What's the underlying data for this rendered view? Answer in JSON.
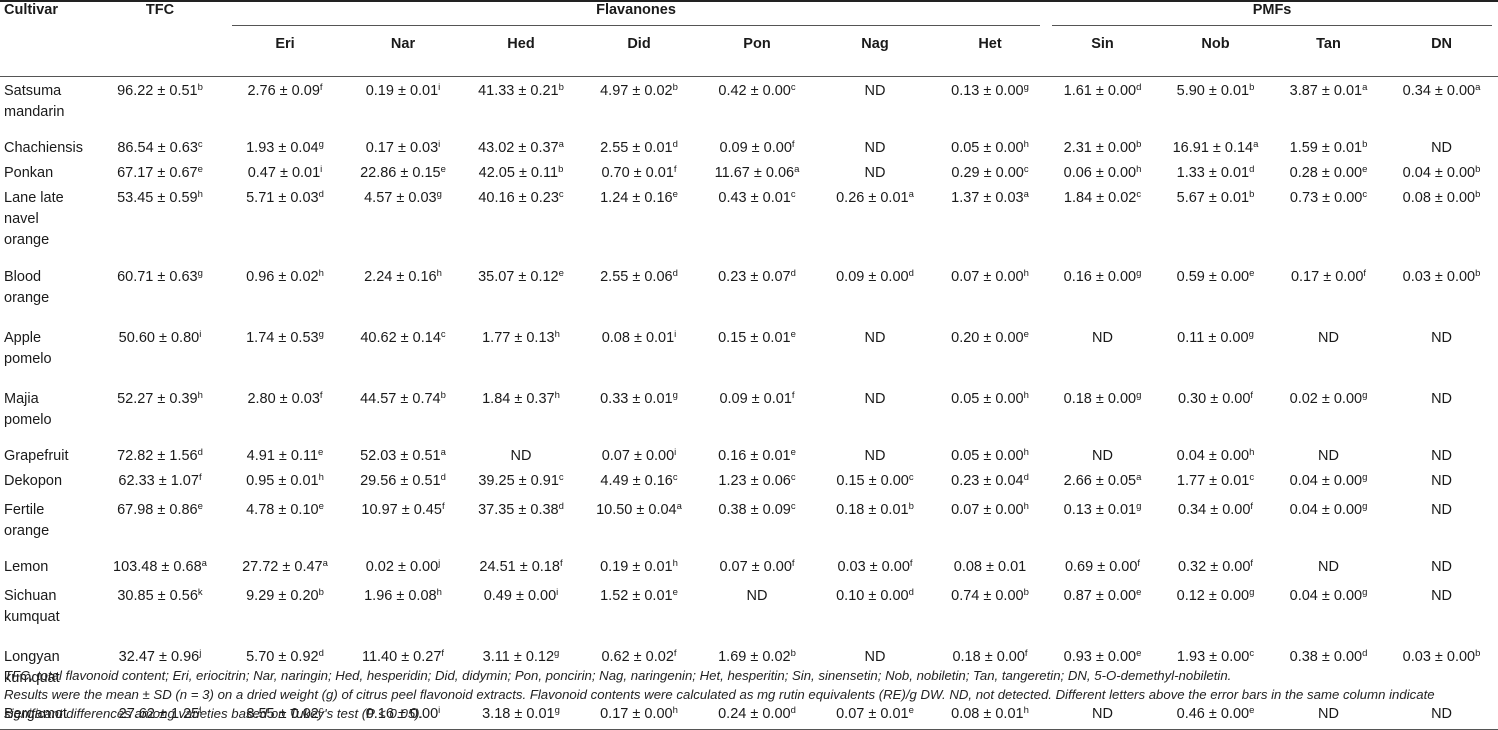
{
  "group_headers": {
    "cultivar": "Cultivar",
    "tfc": "TFC",
    "flavanones": "Flavanones",
    "pmfs": "PMFs"
  },
  "subheaders": [
    "Eri",
    "Nar",
    "Hed",
    "Did",
    "Pon",
    "Nag",
    "Het",
    "Sin",
    "Nob",
    "Tan",
    "DN"
  ],
  "rows": [
    {
      "name": [
        "Satsuma",
        "mandarin"
      ],
      "cells": [
        [
          "96.22 ± 0.51",
          "b"
        ],
        [
          "2.76 ± 0.09",
          "f"
        ],
        [
          "0.19 ± 0.01",
          "i"
        ],
        [
          "41.33 ± 0.21",
          "b"
        ],
        [
          "4.97 ± 0.02",
          "b"
        ],
        [
          "0.42 ± 0.00",
          "c"
        ],
        [
          "ND",
          ""
        ],
        [
          "0.13 ± 0.00",
          "g"
        ],
        [
          "1.61 ± 0.00",
          "d"
        ],
        [
          "5.90 ± 0.01",
          "b"
        ],
        [
          "3.87 ± 0.01",
          "a"
        ],
        [
          "0.34 ± 0.00",
          "a"
        ]
      ]
    },
    {
      "name": [
        "Chachiensis"
      ],
      "cells": [
        [
          "86.54 ± 0.63",
          "c"
        ],
        [
          "1.93 ± 0.04",
          "g"
        ],
        [
          "0.17 ± 0.03",
          "i"
        ],
        [
          "43.02 ± 0.37",
          "a"
        ],
        [
          "2.55 ± 0.01",
          "d"
        ],
        [
          "0.09 ± 0.00",
          "f"
        ],
        [
          "ND",
          ""
        ],
        [
          "0.05 ± 0.00",
          "h"
        ],
        [
          "2.31 ± 0.00",
          "b"
        ],
        [
          "16.91 ± 0.14",
          "a"
        ],
        [
          "1.59 ± 0.01",
          "b"
        ],
        [
          "ND",
          ""
        ]
      ]
    },
    {
      "name": [
        "Ponkan"
      ],
      "cells": [
        [
          "67.17 ± 0.67",
          "e"
        ],
        [
          "0.47 ± 0.01",
          "i"
        ],
        [
          "22.86 ± 0.15",
          "e"
        ],
        [
          "42.05 ± 0.11",
          "b"
        ],
        [
          "0.70 ± 0.01",
          "f"
        ],
        [
          "11.67 ± 0.06",
          "a"
        ],
        [
          "ND",
          ""
        ],
        [
          "0.29 ± 0.00",
          "c"
        ],
        [
          "0.06 ± 0.00",
          "h"
        ],
        [
          "1.33 ± 0.01",
          "d"
        ],
        [
          "0.28 ± 0.00",
          "e"
        ],
        [
          "0.04 ± 0.00",
          "b"
        ]
      ]
    },
    {
      "name": [
        "Lane late",
        "navel",
        "orange"
      ],
      "cells": [
        [
          "53.45 ± 0.59",
          "h"
        ],
        [
          "5.71 ± 0.03",
          "d"
        ],
        [
          "4.57 ± 0.03",
          "g"
        ],
        [
          "40.16 ± 0.23",
          "c"
        ],
        [
          "1.24 ± 0.16",
          "e"
        ],
        [
          "0.43 ± 0.01",
          "c"
        ],
        [
          "0.26 ± 0.01",
          "a"
        ],
        [
          "1.37 ± 0.03",
          "a"
        ],
        [
          "1.84 ± 0.02",
          "c"
        ],
        [
          "5.67 ± 0.01",
          "b"
        ],
        [
          "0.73 ± 0.00",
          "c"
        ],
        [
          "0.08 ± 0.00",
          "b"
        ]
      ]
    },
    {
      "name": [
        "Blood",
        "orange"
      ],
      "cells": [
        [
          "60.71 ± 0.63",
          "g"
        ],
        [
          "0.96 ± 0.02",
          "h"
        ],
        [
          "2.24 ± 0.16",
          "h"
        ],
        [
          "35.07 ± 0.12",
          "e"
        ],
        [
          "2.55 ± 0.06",
          "d"
        ],
        [
          "0.23 ± 0.07",
          "d"
        ],
        [
          "0.09 ± 0.00",
          "d"
        ],
        [
          "0.07 ± 0.00",
          "h"
        ],
        [
          "0.16 ± 0.00",
          "g"
        ],
        [
          "0.59 ± 0.00",
          "e"
        ],
        [
          "0.17 ± 0.00",
          "f"
        ],
        [
          "0.03 ± 0.00",
          "b"
        ]
      ]
    },
    {
      "name": [
        "Apple",
        "pomelo"
      ],
      "cells": [
        [
          "50.60 ± 0.80",
          "i"
        ],
        [
          "1.74 ± 0.53",
          "g"
        ],
        [
          "40.62 ± 0.14",
          "c"
        ],
        [
          "1.77 ± 0.13",
          "h"
        ],
        [
          "0.08 ± 0.01",
          "i"
        ],
        [
          "0.15 ± 0.01",
          "e"
        ],
        [
          "ND",
          ""
        ],
        [
          "0.20 ± 0.00",
          "e"
        ],
        [
          "ND",
          ""
        ],
        [
          "0.11 ± 0.00",
          "g"
        ],
        [
          "ND",
          ""
        ],
        [
          "ND",
          ""
        ]
      ]
    },
    {
      "name": [
        "Majia",
        "pomelo"
      ],
      "cells": [
        [
          "52.27 ± 0.39",
          "h"
        ],
        [
          "2.80 ± 0.03",
          "f"
        ],
        [
          "44.57 ± 0.74",
          "b"
        ],
        [
          "1.84 ± 0.37",
          "h"
        ],
        [
          "0.33 ± 0.01",
          "g"
        ],
        [
          "0.09 ± 0.01",
          "f"
        ],
        [
          "ND",
          ""
        ],
        [
          "0.05 ± 0.00",
          "h"
        ],
        [
          "0.18 ± 0.00",
          "g"
        ],
        [
          "0.30 ± 0.00",
          "f"
        ],
        [
          "0.02 ± 0.00",
          "g"
        ],
        [
          "ND",
          ""
        ]
      ]
    },
    {
      "name": [
        "Grapefruit"
      ],
      "cells": [
        [
          "72.82 ± 1.56",
          "d"
        ],
        [
          "4.91 ± 0.11",
          "e"
        ],
        [
          "52.03 ± 0.51",
          "a"
        ],
        [
          "ND",
          ""
        ],
        [
          "0.07 ± 0.00",
          "i"
        ],
        [
          "0.16 ± 0.01",
          "e"
        ],
        [
          "ND",
          ""
        ],
        [
          "0.05 ± 0.00",
          "h"
        ],
        [
          "ND",
          ""
        ],
        [
          "0.04 ± 0.00",
          "h"
        ],
        [
          "ND",
          ""
        ],
        [
          "ND",
          ""
        ]
      ]
    },
    {
      "name": [
        "Dekopon"
      ],
      "cells": [
        [
          "62.33 ± 1.07",
          "f"
        ],
        [
          "0.95 ± 0.01",
          "h"
        ],
        [
          "29.56 ± 0.51",
          "d"
        ],
        [
          "39.25 ± 0.91",
          "c"
        ],
        [
          "4.49 ± 0.16",
          "c"
        ],
        [
          "1.23 ± 0.06",
          "c"
        ],
        [
          "0.15 ± 0.00",
          "c"
        ],
        [
          "0.23 ± 0.04",
          "d"
        ],
        [
          "2.66 ± 0.05",
          "a"
        ],
        [
          "1.77 ± 0.01",
          "c"
        ],
        [
          "0.04 ± 0.00",
          "g"
        ],
        [
          "ND",
          ""
        ]
      ]
    },
    {
      "name": [
        "Fertile",
        "orange"
      ],
      "cells": [
        [
          "67.98 ± 0.86",
          "e"
        ],
        [
          "4.78 ± 0.10",
          "e"
        ],
        [
          "10.97 ± 0.45",
          "f"
        ],
        [
          "37.35 ± 0.38",
          "d"
        ],
        [
          "10.50 ± 0.04",
          "a"
        ],
        [
          "0.38 ± 0.09",
          "c"
        ],
        [
          "0.18 ± 0.01",
          "b"
        ],
        [
          "0.07 ± 0.00",
          "h"
        ],
        [
          "0.13 ± 0.01",
          "g"
        ],
        [
          "0.34 ± 0.00",
          "f"
        ],
        [
          "0.04 ± 0.00",
          "g"
        ],
        [
          "ND",
          ""
        ]
      ]
    },
    {
      "name": [
        "Lemon"
      ],
      "cells": [
        [
          "103.48 ± 0.68",
          "a"
        ],
        [
          "27.72 ± 0.47",
          "a"
        ],
        [
          "0.02 ± 0.00",
          "j"
        ],
        [
          "24.51 ± 0.18",
          "f"
        ],
        [
          "0.19 ± 0.01",
          "h"
        ],
        [
          "0.07 ± 0.00",
          "f"
        ],
        [
          "0.03 ± 0.00",
          "f"
        ],
        [
          "0.08 ± 0.01",
          ""
        ],
        [
          "0.69 ± 0.00",
          "f"
        ],
        [
          "0.32 ± 0.00",
          "f"
        ],
        [
          "ND",
          ""
        ],
        [
          "ND",
          ""
        ]
      ]
    },
    {
      "name": [
        "Sichuan",
        "kumquat"
      ],
      "cells": [
        [
          "30.85 ± 0.56",
          "k"
        ],
        [
          "9.29 ± 0.20",
          "b"
        ],
        [
          "1.96 ± 0.08",
          "h"
        ],
        [
          "0.49 ± 0.00",
          "i"
        ],
        [
          "1.52 ± 0.01",
          "e"
        ],
        [
          "ND",
          ""
        ],
        [
          "0.10 ± 0.00",
          "d"
        ],
        [
          "0.74 ± 0.00",
          "b"
        ],
        [
          "0.87 ± 0.00",
          "e"
        ],
        [
          "0.12 ± 0.00",
          "g"
        ],
        [
          "0.04 ± 0.00",
          "g"
        ],
        [
          "ND",
          ""
        ]
      ]
    },
    {
      "name": [
        "Longyan",
        "kumquat"
      ],
      "cells": [
        [
          "32.47 ± 0.96",
          "j"
        ],
        [
          "5.70 ± 0.92",
          "d"
        ],
        [
          "11.40 ± 0.27",
          "f"
        ],
        [
          "3.11 ± 0.12",
          "g"
        ],
        [
          "0.62 ± 0.02",
          "f"
        ],
        [
          "1.69 ± 0.02",
          "b"
        ],
        [
          "ND",
          ""
        ],
        [
          "0.18 ± 0.00",
          "f"
        ],
        [
          "0.93 ± 0.00",
          "e"
        ],
        [
          "1.93 ± 0.00",
          "c"
        ],
        [
          "0.38 ± 0.00",
          "d"
        ],
        [
          "0.03 ± 0.00",
          "b"
        ]
      ]
    },
    {
      "name": [
        "Bergamot"
      ],
      "cells": [
        [
          "27.62 ± 1.25",
          "l"
        ],
        [
          "8.55 ± 0.02",
          "c"
        ],
        [
          "0.16 ± 0.00",
          "i"
        ],
        [
          "3.18 ± 0.01",
          "g"
        ],
        [
          "0.17 ± 0.00",
          "h"
        ],
        [
          "0.24 ± 0.00",
          "d"
        ],
        [
          "0.07 ± 0.01",
          "e"
        ],
        [
          "0.08 ± 0.01",
          "h"
        ],
        [
          "ND",
          ""
        ],
        [
          "0.46 ± 0.00",
          "e"
        ],
        [
          "ND",
          ""
        ],
        [
          "ND",
          ""
        ]
      ]
    }
  ],
  "footnotes": [
    "TFC, total flavonoid content; Eri, eriocitrin; Nar, naringin; Hed, hesperidin; Did, didymin; Pon, poncirin; Nag, naringenin; Het, hesperitin; Sin, sinensetin; Nob, nobiletin; Tan, tangeretin; DN, 5-O-demethyl-nobiletin.",
    "Results were the mean ± SD (n = 3) on a dried weight (g) of citrus peel flavonoid extracts. Flavonoid contents were calculated as mg rutin equivalents (RE)/g DW. ND, not detected. Different letters above the error bars in the same column indicate significant differences among varieties based on Tukey's test (P < 0.05)."
  ]
}
